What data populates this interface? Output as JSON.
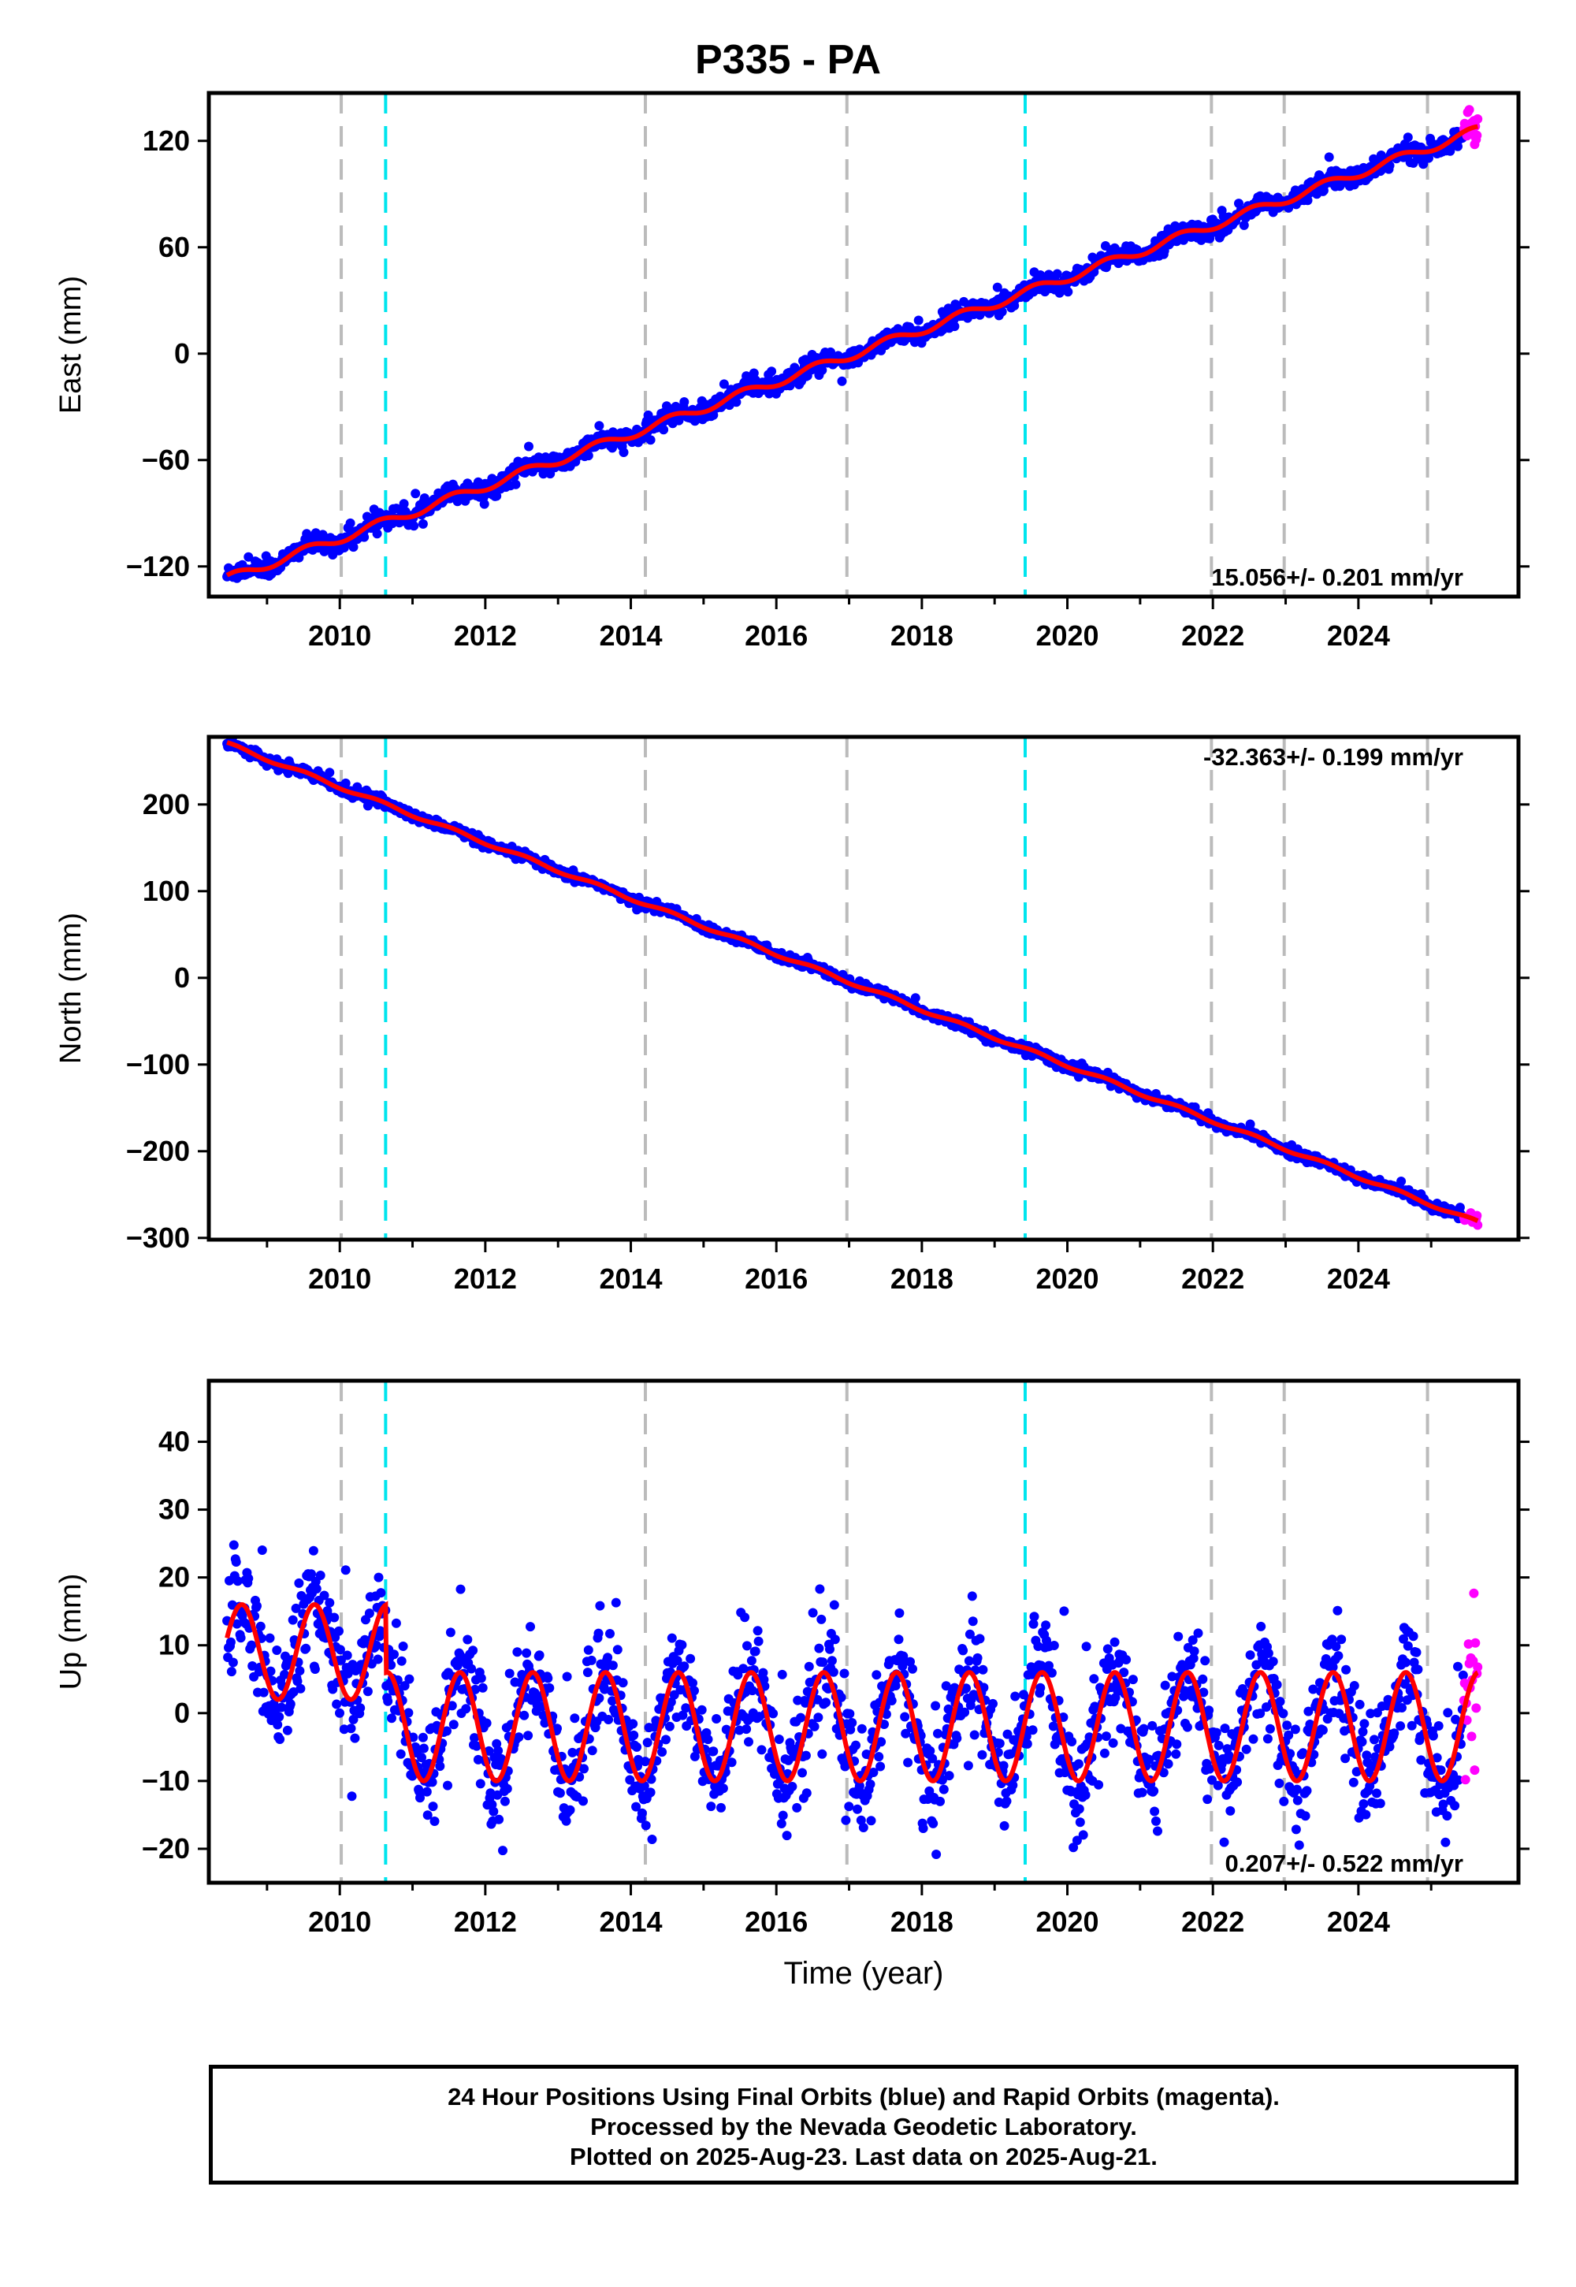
{
  "title": "P335 - PA",
  "colors": {
    "final_orbits": "#0000ff",
    "rapid_orbits": "#ff00ff",
    "model": "#ff0000",
    "equipment_change": "#bbbbbb",
    "event": "#00e5ee"
  },
  "xlabel": "Time (year)",
  "x_ticks": [
    2010,
    2012,
    2014,
    2016,
    2018,
    2020,
    2022,
    2024
  ],
  "gray_lines": [
    2010.02,
    2014.2,
    2016.97,
    2021.98,
    2022.98,
    2024.95
  ],
  "cyan_lines": [
    2010.63,
    2019.42
  ],
  "footer": {
    "line1": "24 Hour Positions Using Final Orbits (blue) and Rapid Orbits (magenta).",
    "line2": "Processed by the Nevada Geodetic Laboratory.",
    "line3": "Plotted on 2025-Aug-23. Last data on 2025-Aug-21."
  },
  "chart_data": [
    {
      "type": "scatter",
      "component": "East",
      "ylabel": "East (mm)",
      "xlim": [
        2008.2,
        2026.2
      ],
      "ylim": [
        -137,
        147
      ],
      "y_ticks": [
        -120,
        -60,
        0,
        60,
        120
      ],
      "rate_label": "15.056+/- 0.201 mm/yr",
      "rate_position": "bottom-right",
      "x_start": 2008.45,
      "x_end": 2025.64,
      "y_start": -127,
      "y_end": 126,
      "rapid_start": 2025.45
    },
    {
      "type": "scatter",
      "component": "North",
      "ylabel": "North (mm)",
      "xlim": [
        2008.2,
        2026.2
      ],
      "ylim": [
        -302,
        278
      ],
      "y_ticks": [
        -300,
        -200,
        -100,
        0,
        100,
        200
      ],
      "rate_label": "-32.363+/- 0.199 mm/yr",
      "rate_position": "top-right",
      "x_start": 2008.45,
      "x_end": 2025.64,
      "y_start": 270,
      "y_end": -282,
      "rapid_start": 2025.45
    },
    {
      "type": "scatter",
      "component": "Up",
      "ylabel": "Up (mm)",
      "xlim": [
        2008.2,
        2026.2
      ],
      "ylim": [
        -25,
        49
      ],
      "y_ticks": [
        -20,
        -10,
        0,
        10,
        20,
        30,
        40
      ],
      "rate_label": "0.207+/- 0.522 mm/yr",
      "rate_position": "bottom-right",
      "x_start": 2008.45,
      "x_end": 2025.64,
      "seasonal_amplitude_mm": 8,
      "rapid_start": 2025.45
    }
  ]
}
